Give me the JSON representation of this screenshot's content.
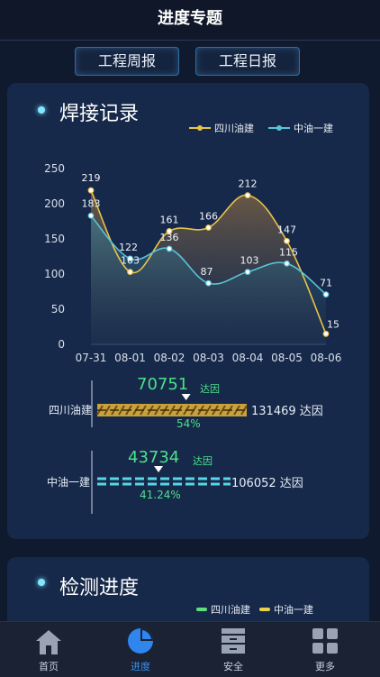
{
  "header": {
    "title": "进度专题"
  },
  "tabs": [
    {
      "label": "工程周报"
    },
    {
      "label": "工程日报"
    }
  ],
  "welding": {
    "title": "焊接记录",
    "legend": [
      {
        "name": "四川油建",
        "color": "#e8c34a"
      },
      {
        "name": "中油一建",
        "color": "#58c3da"
      }
    ]
  },
  "chart_data": {
    "type": "area",
    "categories": [
      "07-31",
      "08-01",
      "08-02",
      "08-03",
      "08-04",
      "08-05",
      "08-06"
    ],
    "yticks": [
      "250",
      "200",
      "150",
      "100",
      "50",
      "0"
    ],
    "ylim": [
      0,
      250
    ],
    "series": [
      {
        "name": "四川油建",
        "values": [
          219,
          103,
          161,
          166,
          212,
          147,
          15
        ],
        "color": "#e8c34a"
      },
      {
        "name": "中油一建",
        "values": [
          183,
          122,
          136,
          87,
          103,
          115,
          71
        ],
        "color": "#58c3da"
      }
    ],
    "legend_position": "top-right",
    "grid": false
  },
  "progress": [
    {
      "name": "四川油建",
      "done": "70751",
      "unit": "达因",
      "percent": "54%",
      "fraction": 0.54,
      "total": "131469 达因",
      "color": "#e8b63a"
    },
    {
      "name": "中油一建",
      "done": "43734",
      "unit": "达因",
      "percent": "41.24%",
      "fraction": 0.4124,
      "total": "106052 达因",
      "color": "#57d6e6"
    }
  ],
  "inspection": {
    "title": "检测进度",
    "legend": [
      {
        "name": "四川油建",
        "color": "#5ee07a"
      },
      {
        "name": "中油一建",
        "color": "#e8d24a"
      }
    ]
  },
  "nav": [
    {
      "label": "首页",
      "icon": "home-icon"
    },
    {
      "label": "进度",
      "icon": "pie-chart-icon",
      "active": true
    },
    {
      "label": "安全",
      "icon": "safety-box-icon"
    },
    {
      "label": "更多",
      "icon": "grid-icon"
    }
  ]
}
